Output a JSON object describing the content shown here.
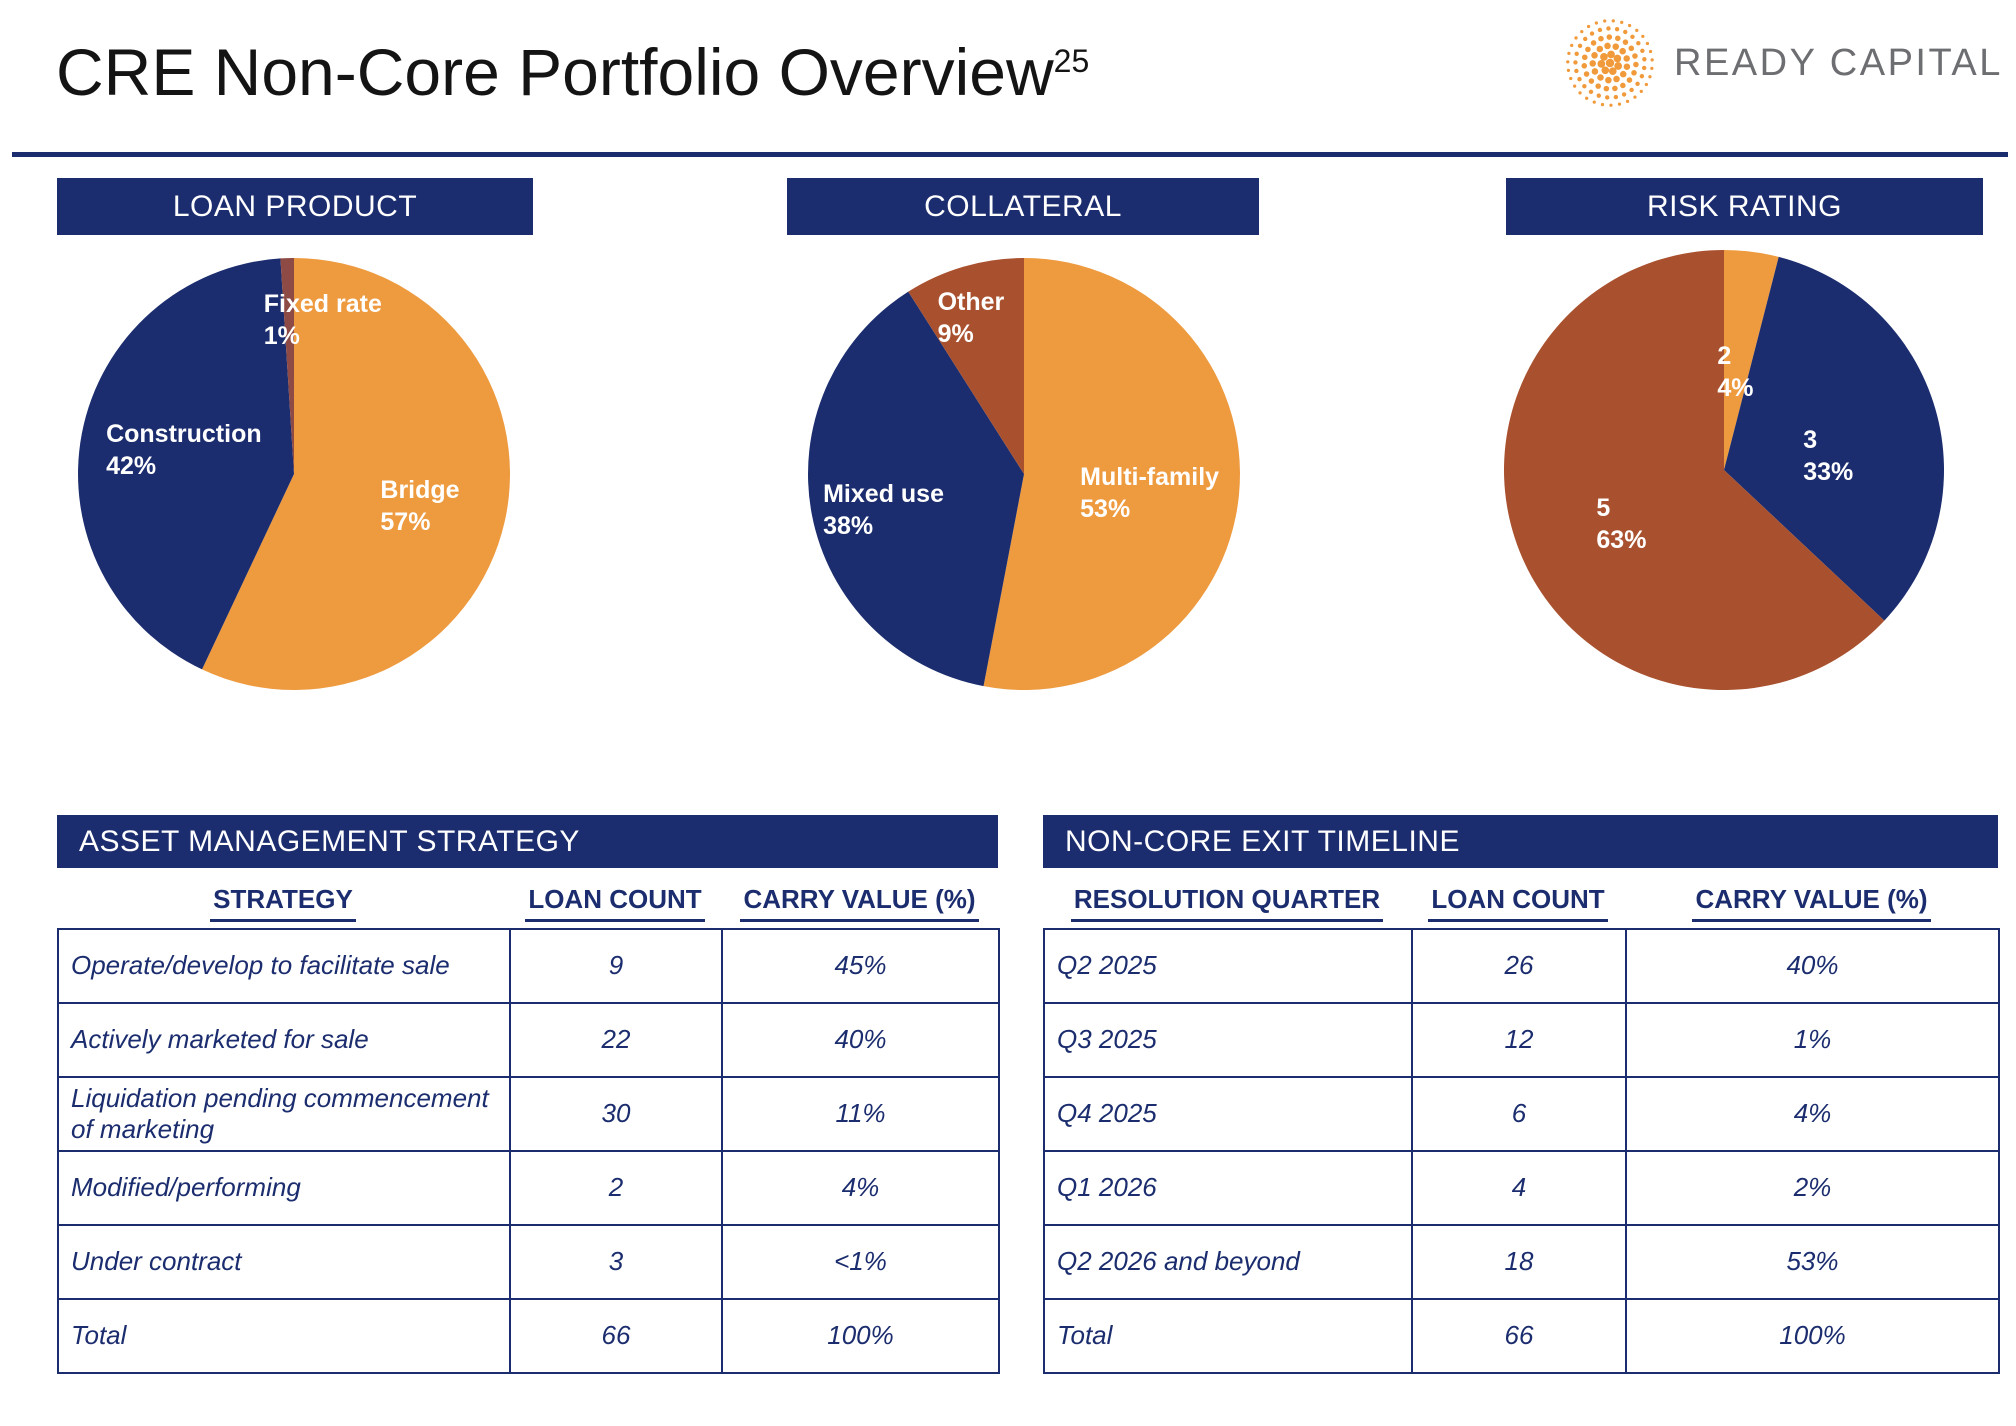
{
  "page": {
    "title": "CRE Non-Core Portfolio Overview",
    "title_superscript": "25",
    "logo": {
      "text": "READY CAPITAL",
      "registered_mark": "®",
      "dot_color": "#F09A3C",
      "text_color": "#6D6E71"
    }
  },
  "colors": {
    "navy": "#1B2D6E",
    "orange": "#EE9A3F",
    "rust": "#A9512E",
    "maroon": "#8E4A44",
    "white": "#FFFFFF"
  },
  "chart_data": [
    {
      "type": "pie",
      "title": "LOAN PRODUCT",
      "slices": [
        {
          "label": "Bridge",
          "value": 57,
          "pct_text": "57%",
          "color": "#EE9A3F"
        },
        {
          "label": "Construction",
          "value": 42,
          "pct_text": "42%",
          "color": "#1B2D6E"
        },
        {
          "label": "Fixed rate",
          "value": 1,
          "pct_text": "1%",
          "color": "#8E4A44"
        }
      ]
    },
    {
      "type": "pie",
      "title": "COLLATERAL",
      "slices": [
        {
          "label": "Multi-family",
          "value": 53,
          "pct_text": "53%",
          "color": "#EE9A3F"
        },
        {
          "label": "Mixed use",
          "value": 38,
          "pct_text": "38%",
          "color": "#1B2D6E"
        },
        {
          "label": "Other",
          "value": 9,
          "pct_text": "9%",
          "color": "#A9512E"
        }
      ]
    },
    {
      "type": "pie",
      "title": "RISK RATING",
      "slices": [
        {
          "label": "2",
          "value": 4,
          "pct_text": "4%",
          "color": "#EE9A3F"
        },
        {
          "label": "3",
          "value": 33,
          "pct_text": "33%",
          "color": "#1B2D6E"
        },
        {
          "label": "5",
          "value": 63,
          "pct_text": "63%",
          "color": "#A9512E"
        }
      ]
    },
    {
      "type": "table",
      "title": "ASSET MANAGEMENT STRATEGY",
      "columns": [
        "STRATEGY",
        "LOAN COUNT",
        "CARRY VALUE (%)"
      ],
      "rows": [
        [
          "Operate/develop to facilitate sale",
          "9",
          "45%"
        ],
        [
          "Actively marketed for sale",
          "22",
          "40%"
        ],
        [
          "Liquidation pending commencement of marketing",
          "30",
          "11%"
        ],
        [
          "Modified/performing",
          "2",
          "4%"
        ],
        [
          "Under contract",
          "3",
          "<1%"
        ],
        [
          "Total",
          "66",
          "100%"
        ]
      ]
    },
    {
      "type": "table",
      "title": "NON-CORE EXIT TIMELINE",
      "columns": [
        "RESOLUTION QUARTER",
        "LOAN COUNT",
        "CARRY VALUE (%)"
      ],
      "rows": [
        [
          "Q2 2025",
          "26",
          "40%"
        ],
        [
          "Q3 2025",
          "12",
          "1%"
        ],
        [
          "Q4 2025",
          "6",
          "4%"
        ],
        [
          "Q1 2026",
          "4",
          "2%"
        ],
        [
          "Q2 2026 and beyond",
          "18",
          "53%"
        ],
        [
          "Total",
          "66",
          "100%"
        ]
      ]
    }
  ]
}
